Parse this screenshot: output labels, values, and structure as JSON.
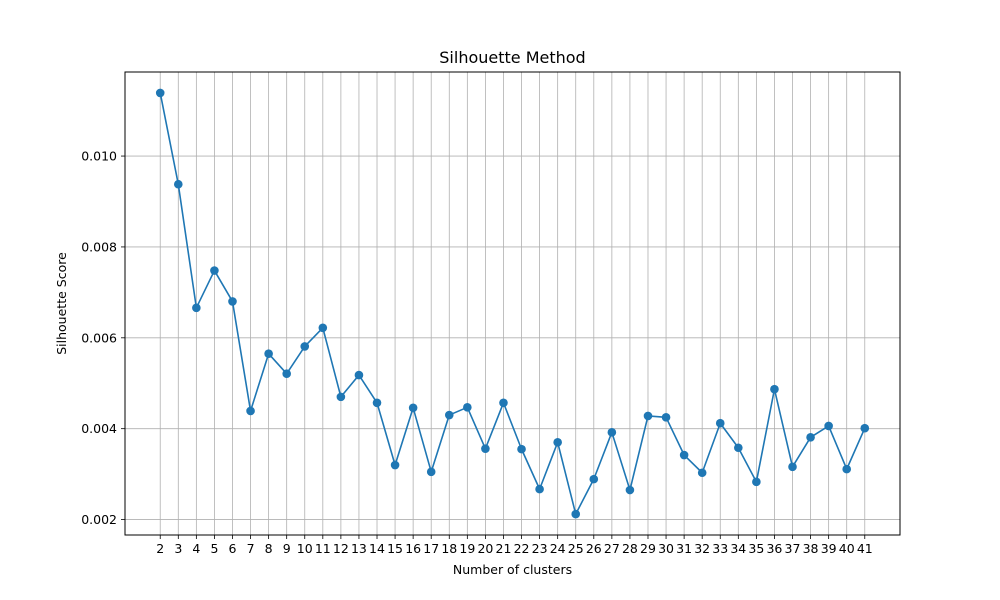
{
  "chart_data": {
    "type": "line",
    "title": "Silhouette Method",
    "xlabel": "Number of clusters",
    "ylabel": "Silhouette Score",
    "x": [
      2,
      3,
      4,
      5,
      6,
      7,
      8,
      9,
      10,
      11,
      12,
      13,
      14,
      15,
      16,
      17,
      18,
      19,
      20,
      21,
      22,
      23,
      24,
      25,
      26,
      27,
      28,
      29,
      30,
      31,
      32,
      33,
      34,
      35,
      36,
      37,
      38,
      39,
      40,
      41
    ],
    "series": [
      {
        "values": [
          0.01139,
          0.00938,
          0.00666,
          0.00748,
          0.0068,
          0.00439,
          0.00565,
          0.00521,
          0.00581,
          0.00622,
          0.0047,
          0.00518,
          0.00457,
          0.0032,
          0.00446,
          0.00305,
          0.0043,
          0.00447,
          0.00356,
          0.00457,
          0.00355,
          0.00267,
          0.0037,
          0.00212,
          0.00289,
          0.00392,
          0.00265,
          0.00428,
          0.00425,
          0.00342,
          0.00303,
          0.00412,
          0.00358,
          0.00283,
          0.00487,
          0.00316,
          0.00381,
          0.00406,
          0.00311,
          0.00401
        ],
        "color": "#1f77b4"
      }
    ],
    "xticks": [
      "2",
      "3",
      "4",
      "5",
      "6",
      "7",
      "8",
      "9",
      "10",
      "11",
      "12",
      "13",
      "14",
      "15",
      "16",
      "17",
      "18",
      "19",
      "20",
      "21",
      "22",
      "23",
      "24",
      "25",
      "26",
      "27",
      "28",
      "29",
      "30",
      "31",
      "32",
      "33",
      "34",
      "35",
      "36",
      "37",
      "38",
      "39",
      "40",
      "41"
    ],
    "yticks": [
      "0.002",
      "0.004",
      "0.006",
      "0.008",
      "0.010"
    ],
    "ytick_values": [
      0.002,
      0.004,
      0.006,
      0.008,
      0.01
    ],
    "ylim": [
      0.00166,
      0.01185
    ],
    "xlim": [
      0.05,
      42.95
    ],
    "grid": true,
    "marker": "circle"
  }
}
